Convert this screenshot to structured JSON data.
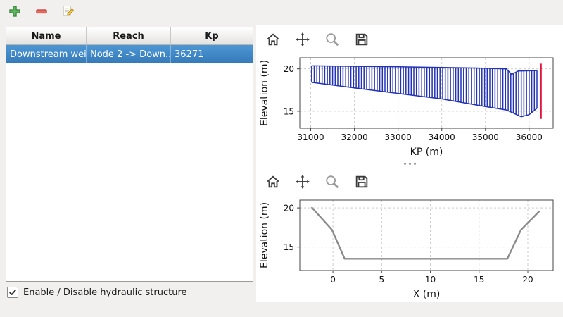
{
  "toolbar": {
    "buttons": [
      {
        "name": "add-structure",
        "icon": "plus-icon"
      },
      {
        "name": "remove-structure",
        "icon": "minus-icon"
      },
      {
        "name": "edit-structure",
        "icon": "edit-icon"
      }
    ]
  },
  "table": {
    "headers": [
      "Name",
      "Reach",
      "Kp"
    ],
    "rows": [
      {
        "name": "Downstream weir",
        "reach": "Node 2 -> Down...",
        "kp": "36271",
        "selected": true
      }
    ]
  },
  "checkbox": {
    "label": "Enable / Disable hydraulic structure",
    "checked": true
  },
  "plot_toolbar_icons": [
    "home",
    "pan",
    "zoom",
    "save"
  ],
  "colors": {
    "selection_blue": "#3d82c4",
    "hatch_blue": "#2231b5",
    "marker_red": "#e8103c",
    "cross_section_gray": "#8a8a8a"
  },
  "chart_data": [
    {
      "type": "vlines-profile",
      "xlabel": "KP (m)",
      "ylabel": "Elevation (m)",
      "xlim": [
        30750,
        36550
      ],
      "ylim": [
        13.0,
        21.3
      ],
      "xticks": [
        31000,
        32000,
        33000,
        34000,
        35000,
        36000
      ],
      "yticks": [
        15,
        20
      ],
      "grid": true,
      "hatch_color": "#2231b5",
      "line_spacing": 60,
      "marker": {
        "x": 36271,
        "y1": 14.1,
        "y2": 20.6,
        "color": "#e8103c"
      },
      "top_profile": [
        [
          31020,
          20.35
        ],
        [
          33000,
          20.25
        ],
        [
          34800,
          20.1
        ],
        [
          35480,
          20.0
        ],
        [
          35600,
          19.35
        ],
        [
          35750,
          19.75
        ],
        [
          36180,
          19.8
        ]
      ],
      "bottom_profile": [
        [
          31020,
          18.4
        ],
        [
          32000,
          17.75
        ],
        [
          33000,
          17.1
        ],
        [
          34000,
          16.45
        ],
        [
          35000,
          15.55
        ],
        [
          35480,
          15.15
        ],
        [
          35820,
          14.35
        ],
        [
          36000,
          14.6
        ],
        [
          36180,
          15.35
        ]
      ]
    },
    {
      "type": "line",
      "xlabel": "X (m)",
      "ylabel": "Elevation (m)",
      "xlim": [
        -3.4,
        22.6
      ],
      "ylim": [
        12.0,
        21.0
      ],
      "xticks": [
        0,
        5,
        10,
        15,
        20
      ],
      "yticks": [
        15,
        20
      ],
      "grid": true,
      "color": "#8a8a8a",
      "points": [
        [
          -2.2,
          20.1
        ],
        [
          -0.1,
          17.2
        ],
        [
          1.2,
          13.5
        ],
        [
          17.9,
          13.5
        ],
        [
          19.3,
          17.2
        ],
        [
          21.2,
          19.6
        ]
      ]
    }
  ]
}
